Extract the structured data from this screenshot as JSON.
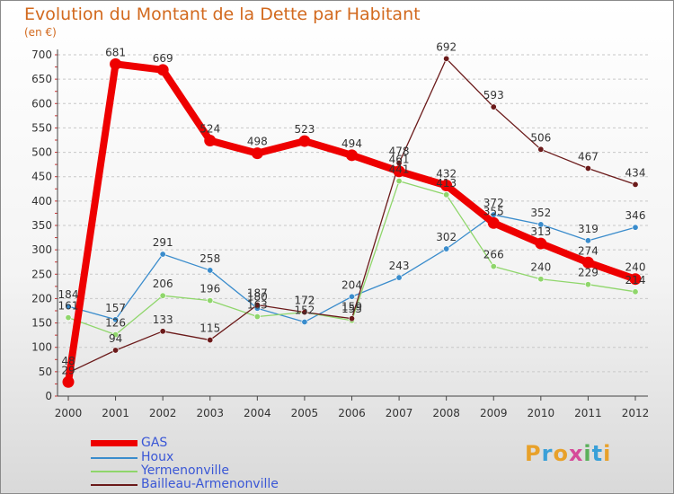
{
  "header": {
    "title": "Evolution du Montant de la Dette par Habitant",
    "unit": "(en €)"
  },
  "logo": {
    "text": "Proxiti",
    "colors": [
      "#e8a12a",
      "#3aa0d8",
      "#e8a12a",
      "#d64b9a",
      "#5bb05b",
      "#3aa0d8",
      "#e8a12a"
    ]
  },
  "chart_data": {
    "type": "line",
    "title": "Evolution du Montant de la Dette par Habitant",
    "ylabel": "(en €)",
    "xlabel": "",
    "x": [
      "2000",
      "2001",
      "2002",
      "2003",
      "2004",
      "2005",
      "2006",
      "2007",
      "2008",
      "2009",
      "2010",
      "2011",
      "2012"
    ],
    "ylim": [
      0,
      700
    ],
    "yticks": [
      0,
      50,
      100,
      150,
      200,
      250,
      300,
      350,
      400,
      450,
      500,
      550,
      600,
      650,
      700
    ],
    "grid": "horizontal dashed",
    "legend": "bottom-left",
    "series": [
      {
        "name": "GAS",
        "color": "#ee0000",
        "values": [
          29,
          681,
          669,
          524,
          498,
          523,
          494,
          461,
          432,
          355,
          313,
          274,
          240
        ],
        "labels": [
          "29",
          "681",
          "669",
          "524",
          "498",
          "523",
          "494",
          "461",
          "432",
          "355",
          "313",
          "274",
          "240"
        ]
      },
      {
        "name": "Houx",
        "color": "#3a8ccc",
        "values": [
          184,
          157,
          291,
          258,
          180,
          152,
          204,
          243,
          302,
          372,
          352,
          319,
          346
        ],
        "labels": [
          "184",
          "157",
          "291",
          "258",
          "180",
          "152",
          "204",
          "243",
          "302",
          "372",
          "352",
          "319",
          "346"
        ]
      },
      {
        "name": "Yermenonville",
        "color": "#8fd66b",
        "values": [
          161,
          126,
          206,
          196,
          163,
          172,
          155,
          441,
          413,
          266,
          240,
          229,
          214
        ],
        "labels": [
          "161",
          "126",
          "206",
          "196",
          "163",
          "172",
          "155",
          "441",
          "413",
          "266",
          "240",
          "229",
          "214"
        ]
      },
      {
        "name": "Bailleau-Armenonville",
        "color": "#6b1a1a",
        "values": [
          48,
          94,
          133,
          115,
          187,
          172,
          159,
          478,
          692,
          593,
          506,
          467,
          434
        ],
        "labels": [
          "48",
          "94",
          "133",
          "115",
          "187",
          "172",
          "159",
          "478",
          "692",
          "593",
          "506",
          "467",
          "434"
        ]
      }
    ]
  }
}
